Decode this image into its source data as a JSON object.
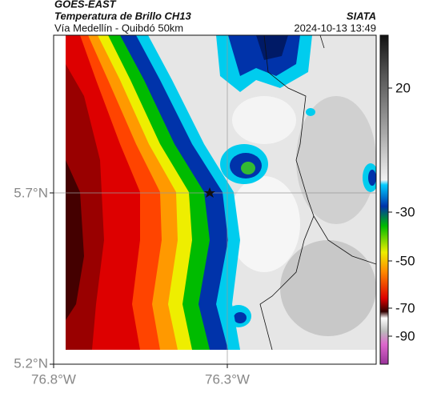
{
  "header": {
    "source": "GOES-EAST",
    "product": "Temperatura de Brillo CH13",
    "agency": "SIATA",
    "route": "Vía Medellín - Quibdó 50km",
    "timestamp": "2024-10-13 13:49"
  },
  "map": {
    "lat_labels": [
      "5.7°N",
      "5.2°N"
    ],
    "lon_labels": [
      "76.8°W",
      "76.3°W"
    ]
  },
  "colorbar": {
    "labels": [
      "20",
      "-30",
      "-50",
      "-70",
      "-90"
    ]
  }
}
